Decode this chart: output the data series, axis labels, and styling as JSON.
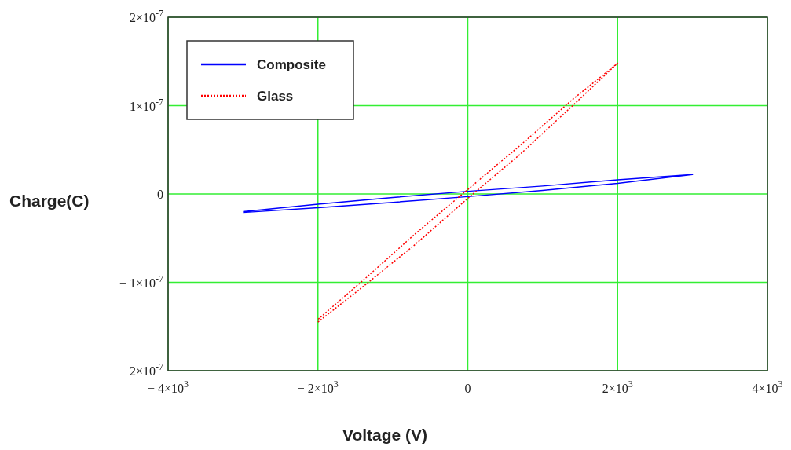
{
  "chart_data": {
    "type": "line",
    "xlabel": "Voltage (V)",
    "ylabel": "Charge(C)",
    "xlim": [
      -4000,
      4000
    ],
    "ylim": [
      -2e-07,
      2e-07
    ],
    "xticks": [
      {
        "value": -4000,
        "label": "− 4×10$^{3}$"
      },
      {
        "value": -2000,
        "label": "− 2×10$^{3}$"
      },
      0,
      {
        "value": 2000,
        "label": "2×10$^{3}$"
      },
      {
        "value": 4000,
        "label": "4×10$^{3}$"
      }
    ],
    "yticks": [
      {
        "value": -2e-07,
        "label": "− 2×10$^{-7}$"
      },
      {
        "value": -1e-07,
        "label": "− 1×10$^{-7}$"
      },
      0,
      {
        "value": 1e-07,
        "label": "1×10$^{-7}$"
      },
      {
        "value": 2e-07,
        "label": "2×10$^{-7}$"
      }
    ],
    "grid": true,
    "legend": "top left",
    "series": [
      {
        "name": "Composite",
        "color": "#0000ff",
        "line_style": "solid",
        "x": [
          -3000,
          -2000,
          -1000,
          0,
          1000,
          2000,
          3000,
          2000,
          1000,
          0,
          -1000,
          -2000,
          -3000
        ],
        "values": [
          -2.1e-08,
          -1.55e-08,
          -9.5e-09,
          -3e-09,
          4e-09,
          1.2e-08,
          2.2e-08,
          1.6e-08,
          9e-09,
          3e-09,
          -4e-09,
          -1.15e-08,
          -2e-08
        ]
      },
      {
        "name": "Glass",
        "color": "#ff0000",
        "line_style": "dotted",
        "x": [
          -2000,
          -1400,
          -700,
          0,
          700,
          1400,
          2000,
          1400,
          700,
          0,
          -700,
          -1400,
          -2000
        ],
        "values": [
          -1.45e-07,
          -1.05e-07,
          -5.7e-08,
          -5e-09,
          4.5e-08,
          1e-07,
          1.48e-07,
          1.07e-07,
          5.5e-08,
          5e-09,
          -4.5e-08,
          -9.8e-08,
          -1.42e-07
        ]
      }
    ]
  }
}
